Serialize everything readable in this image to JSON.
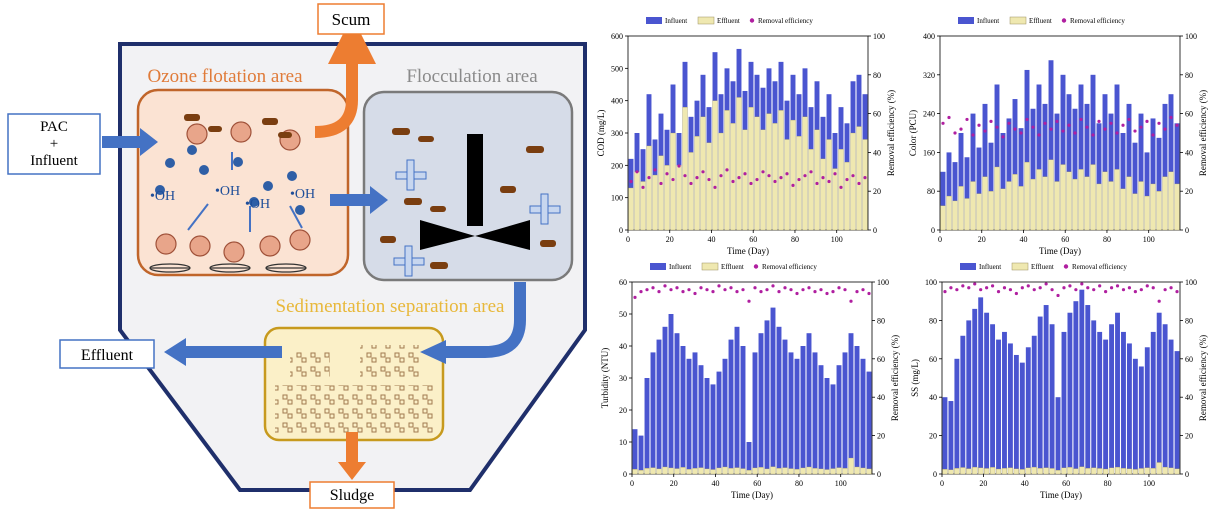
{
  "diagram": {
    "labels": {
      "scum": "Scum",
      "ozone_area": "Ozone flotation area",
      "flocculation_area": "Flocculation area",
      "sedimentation_area": "Sedimentation separation area",
      "inlet_line1": "PAC",
      "inlet_line2": "+",
      "inlet_line3": "Influent",
      "effluent": "Effluent",
      "sludge": "Sludge",
      "oh": "•OH"
    },
    "colors": {
      "ozone": "#e07b39",
      "flocculation": "#8a8a8a",
      "sedimentation": "#e8b83a",
      "arrow_blue": "#4472c4",
      "arrow_orange": "#ed7d31",
      "frame": "#1f2f6b",
      "ozone_fill": "#fbe3d3",
      "floc_fill": "#d6dce8",
      "sed_fill": "#fbf0c8"
    }
  },
  "chart_data": [
    {
      "type": "bar",
      "ylabel": "COD (mg/L)",
      "y2label": "Removal efficiency (%)",
      "xlabel": "Time (Day)",
      "legend": [
        "Influent",
        "Effluent",
        "Removal efficiency"
      ],
      "ylim": [
        0,
        600
      ],
      "y2lim": [
        0,
        100
      ],
      "xlim": [
        0,
        115
      ],
      "yticks": [
        0,
        100,
        200,
        300,
        400,
        500,
        600
      ],
      "y2ticks": [
        0,
        20,
        40,
        60,
        80,
        100
      ],
      "xticks": [
        0,
        20,
        40,
        60,
        80,
        100
      ],
      "series": [
        {
          "name": "Influent",
          "values": [
            220,
            300,
            250,
            420,
            280,
            360,
            310,
            450,
            300,
            520,
            350,
            400,
            480,
            380,
            550,
            420,
            500,
            460,
            560,
            430,
            520,
            480,
            440,
            500,
            460,
            520,
            400,
            480,
            420,
            500,
            380,
            460,
            350,
            420,
            300,
            380,
            330,
            460,
            480,
            420
          ]
        },
        {
          "name": "Effluent",
          "values": [
            130,
            180,
            150,
            260,
            170,
            230,
            200,
            300,
            200,
            380,
            240,
            290,
            350,
            270,
            400,
            300,
            370,
            330,
            410,
            310,
            380,
            350,
            310,
            360,
            330,
            370,
            280,
            340,
            290,
            350,
            250,
            310,
            220,
            280,
            190,
            250,
            210,
            300,
            320,
            280
          ]
        },
        {
          "name": "Removal efficiency",
          "values": [
            25,
            30,
            22,
            27,
            31,
            24,
            29,
            26,
            33,
            28,
            24,
            27,
            30,
            26,
            22,
            28,
            31,
            25,
            27,
            29,
            24,
            26,
            30,
            28,
            25,
            27,
            29,
            23,
            26,
            28,
            30,
            24,
            27,
            25,
            29,
            22,
            26,
            28,
            24,
            27
          ]
        }
      ]
    },
    {
      "type": "bar",
      "ylabel": "Color (PCU)",
      "y2label": "Removal efficiency (%)",
      "xlabel": "Time (Day)",
      "legend": [
        "Influent",
        "Effluent",
        "Removal efficiency"
      ],
      "ylim": [
        0,
        400
      ],
      "y2lim": [
        0,
        100
      ],
      "xlim": [
        0,
        115
      ],
      "yticks": [
        0,
        80,
        160,
        240,
        320,
        400
      ],
      "y2ticks": [
        0,
        20,
        40,
        60,
        80,
        100
      ],
      "xticks": [
        0,
        20,
        40,
        60,
        80,
        100
      ],
      "series": [
        {
          "name": "Influent",
          "values": [
            120,
            160,
            140,
            200,
            150,
            240,
            170,
            260,
            180,
            300,
            200,
            230,
            270,
            210,
            330,
            250,
            300,
            260,
            350,
            240,
            320,
            280,
            250,
            300,
            260,
            320,
            220,
            280,
            240,
            300,
            200,
            260,
            180,
            240,
            160,
            230,
            190,
            260,
            280,
            220
          ]
        },
        {
          "name": "Effluent",
          "values": [
            50,
            70,
            60,
            90,
            65,
            100,
            75,
            110,
            80,
            130,
            85,
            100,
            115,
            90,
            140,
            105,
            125,
            110,
            145,
            100,
            135,
            120,
            105,
            125,
            110,
            135,
            95,
            120,
            100,
            125,
            85,
            110,
            75,
            100,
            70,
            95,
            80,
            110,
            120,
            95
          ]
        },
        {
          "name": "Removal efficiency",
          "values": [
            55,
            58,
            50,
            52,
            57,
            49,
            54,
            51,
            56,
            53,
            48,
            55,
            52,
            50,
            57,
            53,
            49,
            55,
            52,
            56,
            51,
            54,
            50,
            57,
            53,
            49,
            56,
            52,
            55,
            50,
            54,
            57,
            51,
            53,
            56,
            49,
            55,
            52,
            58,
            54
          ]
        }
      ]
    },
    {
      "type": "bar",
      "ylabel": "Turbidity (NTU)",
      "y2label": "Removal efficiency (%)",
      "xlabel": "Time (Day)",
      "legend": [
        "Influent",
        "Effluent",
        "Removal efficiency"
      ],
      "ylim": [
        0,
        60
      ],
      "y2lim": [
        0,
        100
      ],
      "xlim": [
        0,
        115
      ],
      "yticks": [
        0,
        10,
        20,
        30,
        40,
        50,
        60
      ],
      "y2ticks": [
        0,
        20,
        40,
        60,
        80,
        100
      ],
      "xticks": [
        0,
        20,
        40,
        60,
        80,
        100
      ],
      "series": [
        {
          "name": "Influent",
          "values": [
            14,
            12,
            30,
            38,
            42,
            46,
            50,
            44,
            40,
            36,
            38,
            34,
            30,
            28,
            32,
            36,
            42,
            46,
            40,
            10,
            38,
            44,
            48,
            52,
            46,
            42,
            38,
            36,
            40,
            44,
            38,
            34,
            30,
            28,
            34,
            38,
            44,
            40,
            36,
            32
          ]
        },
        {
          "name": "Effluent",
          "values": [
            1.5,
            1.2,
            1.8,
            2.0,
            1.6,
            2.2,
            1.9,
            1.7,
            2.1,
            1.5,
            1.8,
            2.0,
            1.6,
            1.4,
            1.9,
            2.2,
            1.8,
            2.0,
            1.7,
            1.2,
            1.9,
            2.1,
            1.6,
            2.3,
            1.8,
            2.0,
            1.7,
            1.5,
            1.9,
            2.2,
            1.8,
            1.6,
            1.4,
            1.7,
            2.0,
            1.8,
            5.0,
            2.2,
            1.9,
            1.6
          ]
        },
        {
          "name": "Removal efficiency",
          "values": [
            92,
            95,
            96,
            97,
            95,
            98,
            96,
            97,
            95,
            96,
            94,
            97,
            96,
            95,
            98,
            96,
            97,
            95,
            96,
            90,
            97,
            95,
            96,
            98,
            95,
            97,
            96,
            94,
            96,
            97,
            95,
            96,
            94,
            95,
            97,
            96,
            90,
            95,
            96,
            94
          ]
        }
      ]
    },
    {
      "type": "bar",
      "ylabel": "SS (mg/L)",
      "y2label": "Removal efficiency (%)",
      "xlabel": "Time (Day)",
      "legend": [
        "Influent",
        "Effluent",
        "Removal efficiency"
      ],
      "ylim": [
        0,
        100
      ],
      "y2lim": [
        0,
        100
      ],
      "xlim": [
        0,
        115
      ],
      "yticks": [
        0,
        20,
        40,
        60,
        80,
        100
      ],
      "y2ticks": [
        0,
        20,
        40,
        60,
        80,
        100
      ],
      "xticks": [
        0,
        20,
        40,
        60,
        80,
        100
      ],
      "series": [
        {
          "name": "Influent",
          "values": [
            40,
            38,
            60,
            72,
            80,
            86,
            92,
            84,
            78,
            70,
            74,
            68,
            62,
            58,
            66,
            72,
            82,
            88,
            78,
            40,
            74,
            84,
            90,
            96,
            88,
            80,
            74,
            70,
            78,
            84,
            74,
            68,
            60,
            56,
            66,
            74,
            84,
            78,
            70,
            64
          ]
        },
        {
          "name": "Effluent",
          "values": [
            2.5,
            2.2,
            3.0,
            3.4,
            2.8,
            3.6,
            3.2,
            2.9,
            3.5,
            2.6,
            3.0,
            3.3,
            2.7,
            2.4,
            3.2,
            3.6,
            3.0,
            3.3,
            2.9,
            2.0,
            3.2,
            3.5,
            2.8,
            3.8,
            3.0,
            3.3,
            2.9,
            2.6,
            3.2,
            3.6,
            3.0,
            2.7,
            2.4,
            2.9,
            3.3,
            3.0,
            6.0,
            3.6,
            3.2,
            2.7
          ]
        },
        {
          "name": "Removal efficiency",
          "values": [
            95,
            97,
            96,
            98,
            97,
            99,
            96,
            97,
            98,
            95,
            97,
            96,
            94,
            97,
            98,
            96,
            97,
            99,
            96,
            93,
            97,
            98,
            96,
            99,
            97,
            96,
            98,
            95,
            97,
            98,
            96,
            97,
            95,
            96,
            98,
            97,
            90,
            96,
            97,
            95
          ]
        }
      ]
    }
  ]
}
